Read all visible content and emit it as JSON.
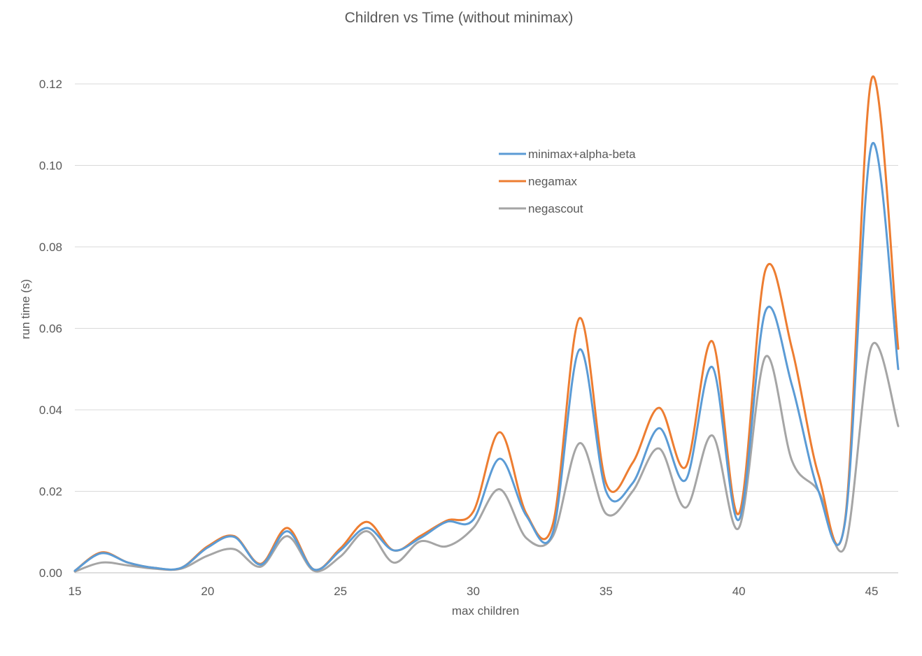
{
  "chart_data": {
    "type": "line",
    "title": "Children vs Time (without minimax)",
    "xlabel": "max children",
    "ylabel": "run time (s)",
    "xlim": [
      15,
      46
    ],
    "ylim": [
      0,
      0.12
    ],
    "xticks": [
      15,
      20,
      25,
      30,
      35,
      40,
      45
    ],
    "xtick_labels": [
      "15",
      "20",
      "25",
      "30",
      "35",
      "40",
      "45"
    ],
    "yticks": [
      0,
      0.02,
      0.04,
      0.06,
      0.08,
      0.1,
      0.12
    ],
    "ytick_labels": [
      "0.00",
      "0.02",
      "0.04",
      "0.06",
      "0.08",
      "0.10",
      "0.12"
    ],
    "grid": true,
    "legend_position": "upper-center-right",
    "smooth": true,
    "x": [
      15,
      16,
      17,
      18,
      19,
      20,
      21,
      22,
      23,
      24,
      25,
      26,
      27,
      28,
      29,
      30,
      31,
      32,
      33,
      34,
      35,
      36,
      37,
      38,
      39,
      40,
      41,
      42,
      43,
      44,
      45,
      46
    ],
    "series": [
      {
        "name": "minimax+alpha-beta",
        "color": "#5b9bd5",
        "values": [
          0.0005,
          0.0048,
          0.0025,
          0.0012,
          0.0012,
          0.0062,
          0.0088,
          0.002,
          0.0102,
          0.0008,
          0.0055,
          0.011,
          0.0055,
          0.0085,
          0.0125,
          0.013,
          0.028,
          0.014,
          0.01,
          0.0548,
          0.02,
          0.022,
          0.0355,
          0.0228,
          0.0505,
          0.013,
          0.0642,
          0.046,
          0.02,
          0.0125,
          0.105,
          0.05
        ]
      },
      {
        "name": "negamax",
        "color": "#ed7d31",
        "values": [
          0.0005,
          0.005,
          0.0025,
          0.0012,
          0.0012,
          0.0065,
          0.009,
          0.0022,
          0.011,
          0.0008,
          0.006,
          0.0125,
          0.0055,
          0.009,
          0.0128,
          0.015,
          0.0345,
          0.0145,
          0.012,
          0.0625,
          0.022,
          0.027,
          0.0405,
          0.026,
          0.0568,
          0.0145,
          0.0743,
          0.055,
          0.024,
          0.013,
          0.1213,
          0.055
        ]
      },
      {
        "name": "negascout",
        "color": "#a5a5a5",
        "values": [
          0.0003,
          0.0025,
          0.0018,
          0.001,
          0.001,
          0.0042,
          0.0058,
          0.0015,
          0.009,
          0.0005,
          0.004,
          0.0102,
          0.0025,
          0.0077,
          0.0065,
          0.011,
          0.0205,
          0.0085,
          0.009,
          0.0318,
          0.0145,
          0.02,
          0.0305,
          0.016,
          0.0337,
          0.011,
          0.053,
          0.0275,
          0.02,
          0.0065,
          0.0557,
          0.036
        ]
      }
    ]
  }
}
